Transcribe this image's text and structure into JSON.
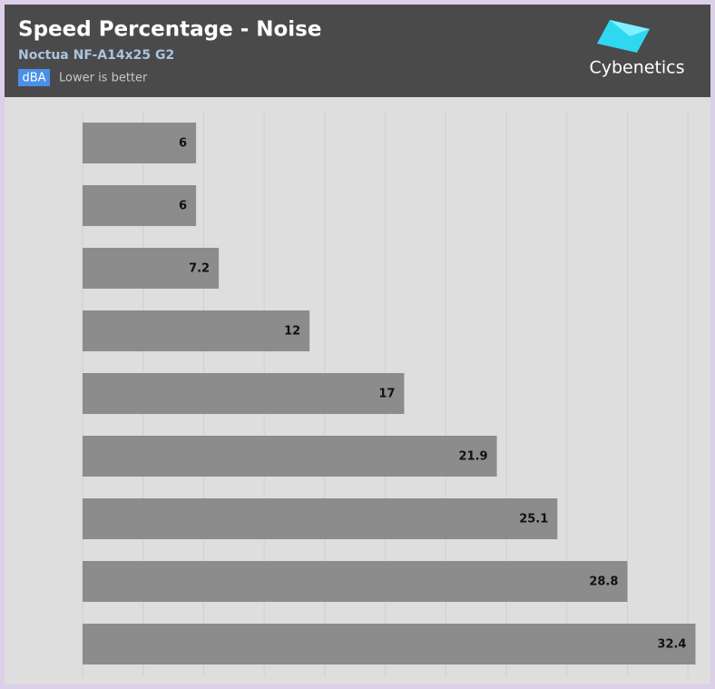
{
  "chart_data": {
    "type": "barh",
    "title": "Speed Percentage - Noise",
    "subtitle": "Noctua NF-A14x25 G2",
    "unit": "dBA",
    "note": "Lower is better",
    "logo": "Cybenetics",
    "categories": [
      null,
      null,
      null,
      null,
      null,
      null,
      null,
      null,
      null
    ],
    "values": [
      6,
      6,
      7.2,
      12,
      17,
      21.9,
      25.1,
      28.8,
      32.4
    ],
    "color": "#8c8c8c",
    "xlim": [
      0,
      33
    ],
    "xticks": [
      0,
      3.2,
      6.4,
      9.6,
      12.8,
      16,
      19.2,
      22.4,
      25.6,
      28.8,
      32
    ],
    "grid": true
  }
}
